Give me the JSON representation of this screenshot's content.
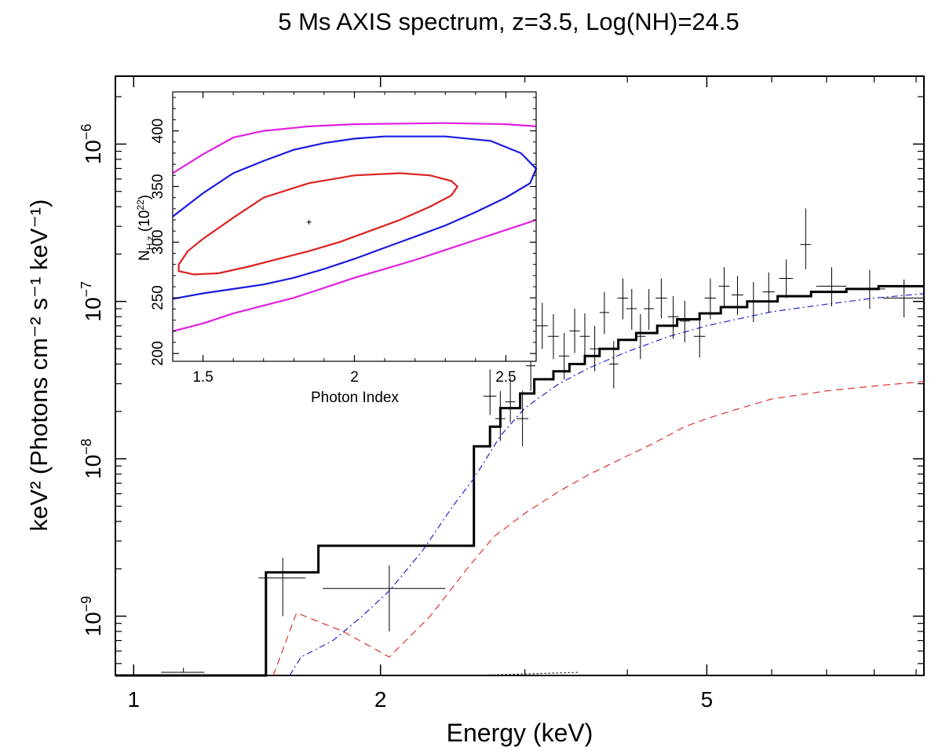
{
  "chart_data": [
    {
      "type": "line",
      "title": "5 Ms AXIS spectrum, z=3.5, Log(NH)=24.5",
      "xlabel": "Energy (keV)",
      "ylabel": "keV² (Photons cm⁻² s⁻¹ keV⁻¹)",
      "xscale": "log",
      "yscale": "log",
      "xlim": [
        0.95,
        9.2
      ],
      "ylim": [
        4.2e-10,
        2.7e-06
      ],
      "xticks": [
        {
          "value": 1,
          "label": "1"
        },
        {
          "value": 2,
          "label": "2"
        },
        {
          "value": 5,
          "label": "5"
        }
      ],
      "yticks": [
        {
          "value": 1e-09,
          "base": "10",
          "exp": "−9"
        },
        {
          "value": 1e-08,
          "base": "10",
          "exp": "−8"
        },
        {
          "value": 1e-07,
          "base": "10",
          "exp": "−7"
        },
        {
          "value": 1e-06,
          "base": "10",
          "exp": "−6"
        }
      ],
      "series": [
        {
          "name": "total model",
          "style": "step",
          "color": "#000000",
          "width": 3,
          "points": [
            [
              0.95,
              4.2e-10
            ],
            [
              1.45,
              4.2e-10
            ],
            [
              1.45,
              1.9e-09
            ],
            [
              1.68,
              1.9e-09
            ],
            [
              1.68,
              2.8e-09
            ],
            [
              2.6,
              2.8e-09
            ],
            [
              2.6,
              1.2e-08
            ],
            [
              2.72,
              1.2e-08
            ],
            [
              2.72,
              1.6e-08
            ],
            [
              2.8,
              1.6e-08
            ],
            [
              2.8,
              2.1e-08
            ],
            [
              2.96,
              2.1e-08
            ],
            [
              2.96,
              2.6e-08
            ],
            [
              3.08,
              2.6e-08
            ],
            [
              3.08,
              3.2e-08
            ],
            [
              3.25,
              3.2e-08
            ],
            [
              3.25,
              3.6e-08
            ],
            [
              3.4,
              3.6e-08
            ],
            [
              3.4,
              4e-08
            ],
            [
              3.55,
              4e-08
            ],
            [
              3.55,
              4.5e-08
            ],
            [
              3.7,
              4.5e-08
            ],
            [
              3.7,
              5e-08
            ],
            [
              3.9,
              5e-08
            ],
            [
              3.9,
              5.7e-08
            ],
            [
              4.1,
              5.7e-08
            ],
            [
              4.1,
              6.3e-08
            ],
            [
              4.35,
              6.3e-08
            ],
            [
              4.35,
              7e-08
            ],
            [
              4.6,
              7e-08
            ],
            [
              4.6,
              7.7e-08
            ],
            [
              4.9,
              7.7e-08
            ],
            [
              4.9,
              8.4e-08
            ],
            [
              5.2,
              8.4e-08
            ],
            [
              5.2,
              9.2e-08
            ],
            [
              5.6,
              9.2e-08
            ],
            [
              5.6,
              1e-07
            ],
            [
              6.1,
              1e-07
            ],
            [
              6.1,
              1.08e-07
            ],
            [
              6.7,
              1.08e-07
            ],
            [
              6.7,
              1.15e-07
            ],
            [
              7.4,
              1.15e-07
            ],
            [
              7.4,
              1.2e-07
            ],
            [
              8.1,
              1.2e-07
            ],
            [
              8.1,
              1.25e-07
            ],
            [
              9.2,
              1.25e-07
            ]
          ]
        },
        {
          "name": "blue dash-dot component",
          "style": "dashdot",
          "color": "#2222cc",
          "width": 1.2,
          "points": [
            [
              1.55,
              4.2e-10
            ],
            [
              1.6,
              5.5e-10
            ],
            [
              1.75,
              7e-10
            ],
            [
              1.9,
              1e-09
            ],
            [
              2.05,
              1.45e-09
            ],
            [
              2.25,
              2.6e-09
            ],
            [
              2.45,
              5e-09
            ],
            [
              2.6,
              7.5e-09
            ],
            [
              2.8,
              1.4e-08
            ],
            [
              3.0,
              2.1e-08
            ],
            [
              3.3,
              3e-08
            ],
            [
              3.6,
              3.8e-08
            ],
            [
              4.0,
              4.8e-08
            ],
            [
              4.5,
              6e-08
            ],
            [
              5.0,
              7e-08
            ],
            [
              5.5,
              7.8e-08
            ],
            [
              6.0,
              8.6e-08
            ],
            [
              7.0,
              9.6e-08
            ],
            [
              8.0,
              1.05e-07
            ],
            [
              9.2,
              1.12e-07
            ]
          ]
        },
        {
          "name": "red dashed component",
          "style": "dashed",
          "color": "#e03030",
          "width": 1.2,
          "points": [
            [
              1.48,
              4.2e-10
            ],
            [
              1.58,
              1.05e-09
            ],
            [
              1.8,
              8e-10
            ],
            [
              2.05,
              5.5e-10
            ],
            [
              2.3,
              1e-09
            ],
            [
              2.55,
              2e-09
            ],
            [
              2.75,
              3.2e-09
            ],
            [
              3.0,
              4.5e-09
            ],
            [
              3.3,
              6.2e-09
            ],
            [
              3.6,
              8e-09
            ],
            [
              3.9,
              9.8e-09
            ],
            [
              4.3,
              1.25e-08
            ],
            [
              4.7,
              1.6e-08
            ],
            [
              5.0,
              1.8e-08
            ],
            [
              5.5,
              2.1e-08
            ],
            [
              6.0,
              2.4e-08
            ],
            [
              7.0,
              2.7e-08
            ],
            [
              8.0,
              2.9e-08
            ],
            [
              9.2,
              3.1e-08
            ]
          ]
        },
        {
          "name": "black dotted component",
          "style": "dotted",
          "color": "#000000",
          "width": 1.2,
          "points": [
            [
              2.6,
              4.2e-10
            ],
            [
              3.5,
              4.4e-10
            ]
          ]
        }
      ],
      "data_points": [
        [
          1.15,
          4.4e-10,
          0.07,
          0.0,
          3e-11
        ],
        [
          1.52,
          1.75e-09,
          0.1,
          7.5e-10,
          6e-10
        ],
        [
          2.05,
          1.5e-09,
          0.35,
          7e-10,
          6e-10
        ],
        [
          2.72,
          2.5e-08,
          0.05,
          6e-09,
          1.2e-08
        ],
        [
          2.8,
          1.8e-08,
          0.04,
          5e-09,
          9e-09
        ],
        [
          2.88,
          2.3e-08,
          0.04,
          6e-09,
          1e-08
        ],
        [
          2.98,
          1.8e-08,
          0.05,
          6e-09,
          9e-09
        ],
        [
          3.05,
          3.9e-08,
          0.04,
          1.2e-08,
          1.5e-08
        ],
        [
          3.15,
          7e-08,
          0.05,
          2e-08,
          2.8e-08
        ],
        [
          3.25,
          6e-08,
          0.05,
          1.7e-08,
          2.3e-08
        ],
        [
          3.35,
          4.5e-08,
          0.05,
          1.3e-08,
          1.8e-08
        ],
        [
          3.45,
          6.5e-08,
          0.05,
          1.8e-08,
          2.5e-08
        ],
        [
          3.55,
          6e-08,
          0.05,
          1.7e-08,
          2.4e-08
        ],
        [
          3.65,
          5e-08,
          0.05,
          1.4e-08,
          2e-08
        ],
        [
          3.75,
          8.5e-08,
          0.05,
          2.3e-08,
          3e-08
        ],
        [
          3.85,
          4e-08,
          0.05,
          1.2e-08,
          1.6e-08
        ],
        [
          3.95,
          1.05e-07,
          0.06,
          2.8e-08,
          3.5e-08
        ],
        [
          4.05,
          9e-08,
          0.06,
          2.4e-08,
          3e-08
        ],
        [
          4.15,
          6e-08,
          0.06,
          1.7e-08,
          2.3e-08
        ],
        [
          4.25,
          9e-08,
          0.06,
          2.4e-08,
          3e-08
        ],
        [
          4.4,
          1.05e-07,
          0.07,
          2.7e-08,
          3.5e-08
        ],
        [
          4.55,
          8e-08,
          0.07,
          2.2e-08,
          2.8e-08
        ],
        [
          4.7,
          7.5e-08,
          0.07,
          2e-08,
          2.6e-08
        ],
        [
          4.9,
          6e-08,
          0.08,
          1.6e-08,
          2.2e-08
        ],
        [
          5.05,
          1.05e-07,
          0.08,
          2.8e-08,
          3.5e-08
        ],
        [
          5.25,
          1.25e-07,
          0.08,
          3.2e-08,
          4e-08
        ],
        [
          5.45,
          1.1e-07,
          0.09,
          2.8e-08,
          3.5e-08
        ],
        [
          5.7,
          1e-07,
          0.1,
          2.6e-08,
          3.3e-08
        ],
        [
          5.95,
          1.15e-07,
          0.1,
          3e-08,
          3.8e-08
        ],
        [
          6.25,
          1.4e-07,
          0.12,
          3.5e-08,
          4.5e-08
        ],
        [
          6.6,
          2.3e-07,
          0.1,
          7e-08,
          1.6e-07
        ],
        [
          7.1,
          1.25e-07,
          0.3,
          3.2e-08,
          4e-08
        ],
        [
          7.9,
          1.2e-07,
          0.35,
          3e-08,
          3.8e-08
        ],
        [
          8.7,
          1.05e-07,
          0.5,
          2.6e-08,
          3.3e-08
        ]
      ]
    },
    {
      "type": "contour",
      "title": "",
      "xlabel": "Photon Index",
      "ylabel": "N",
      "ylabel_sub": "H,z",
      "ylabel_unit": " (10",
      "ylabel_unit_exp": "22",
      "ylabel_unit_close": ")",
      "xlim": [
        1.4,
        2.6
      ],
      "ylim": [
        193,
        435
      ],
      "xticks": [
        {
          "value": 1.5,
          "label": "1.5"
        },
        {
          "value": 2,
          "label": "2"
        },
        {
          "value": 2.5,
          "label": "2.5"
        }
      ],
      "yticks": [
        {
          "value": 200,
          "label": "200"
        },
        {
          "value": 250,
          "label": "250"
        },
        {
          "value": 300,
          "label": "300"
        },
        {
          "value": 350,
          "label": "350"
        },
        {
          "value": 400,
          "label": "400"
        }
      ],
      "best_fit": [
        1.85,
        318
      ],
      "contours": [
        {
          "name": "inner",
          "color": "#e02020",
          "closed": true,
          "points": [
            [
              1.42,
              280
            ],
            [
              1.45,
              292
            ],
            [
              1.5,
              303
            ],
            [
              1.6,
              322
            ],
            [
              1.7,
              340
            ],
            [
              1.85,
              353
            ],
            [
              2.0,
              360
            ],
            [
              2.15,
              362
            ],
            [
              2.25,
              360
            ],
            [
              2.32,
              355
            ],
            [
              2.34,
              350
            ],
            [
              2.32,
              342
            ],
            [
              2.25,
              332
            ],
            [
              2.15,
              320
            ],
            [
              2.05,
              310
            ],
            [
              1.95,
              300
            ],
            [
              1.85,
              292
            ],
            [
              1.75,
              285
            ],
            [
              1.65,
              278
            ],
            [
              1.55,
              272
            ],
            [
              1.47,
              271
            ],
            [
              1.42,
              274
            ]
          ]
        },
        {
          "name": "middle",
          "color": "#1a1ae0",
          "closed": false,
          "points": [
            [
              1.4,
              323
            ],
            [
              1.5,
              344
            ],
            [
              1.6,
              362
            ],
            [
              1.7,
              373
            ],
            [
              1.8,
              383
            ],
            [
              1.9,
              389
            ],
            [
              2.0,
              393
            ],
            [
              2.1,
              395
            ],
            [
              2.3,
              395
            ],
            [
              2.45,
              391
            ],
            [
              2.55,
              380
            ],
            [
              2.6,
              366
            ],
            [
              2.58,
              353
            ],
            [
              2.5,
              340
            ],
            [
              2.4,
              327
            ],
            [
              2.3,
              315
            ],
            [
              2.2,
              305
            ],
            [
              2.1,
              295
            ],
            [
              2.0,
              285
            ],
            [
              1.9,
              276
            ],
            [
              1.8,
              268
            ],
            [
              1.7,
              262
            ],
            [
              1.6,
              258
            ],
            [
              1.5,
              254
            ],
            [
              1.4,
              249
            ]
          ]
        },
        {
          "name": "outer",
          "color": "#e020e0",
          "closed": false,
          "points": [
            [
              1.4,
              362
            ],
            [
              1.5,
              379
            ],
            [
              1.6,
              394
            ],
            [
              1.7,
              400
            ],
            [
              1.85,
              404
            ],
            [
              2.0,
              406
            ],
            [
              2.3,
              407
            ],
            [
              2.5,
              406
            ],
            [
              2.6,
              404
            ]
          ]
        },
        {
          "name": "outer-lower",
          "color": "#e020e0",
          "closed": false,
          "points": [
            [
              1.4,
              220
            ],
            [
              1.5,
              227
            ],
            [
              1.6,
              236
            ],
            [
              1.7,
              243
            ],
            [
              1.8,
              250
            ],
            [
              1.9,
              259
            ],
            [
              2.0,
              268
            ],
            [
              2.1,
              276
            ],
            [
              2.2,
              284
            ],
            [
              2.3,
              293
            ],
            [
              2.4,
              302
            ],
            [
              2.5,
              311
            ],
            [
              2.6,
              320
            ]
          ]
        }
      ]
    }
  ]
}
